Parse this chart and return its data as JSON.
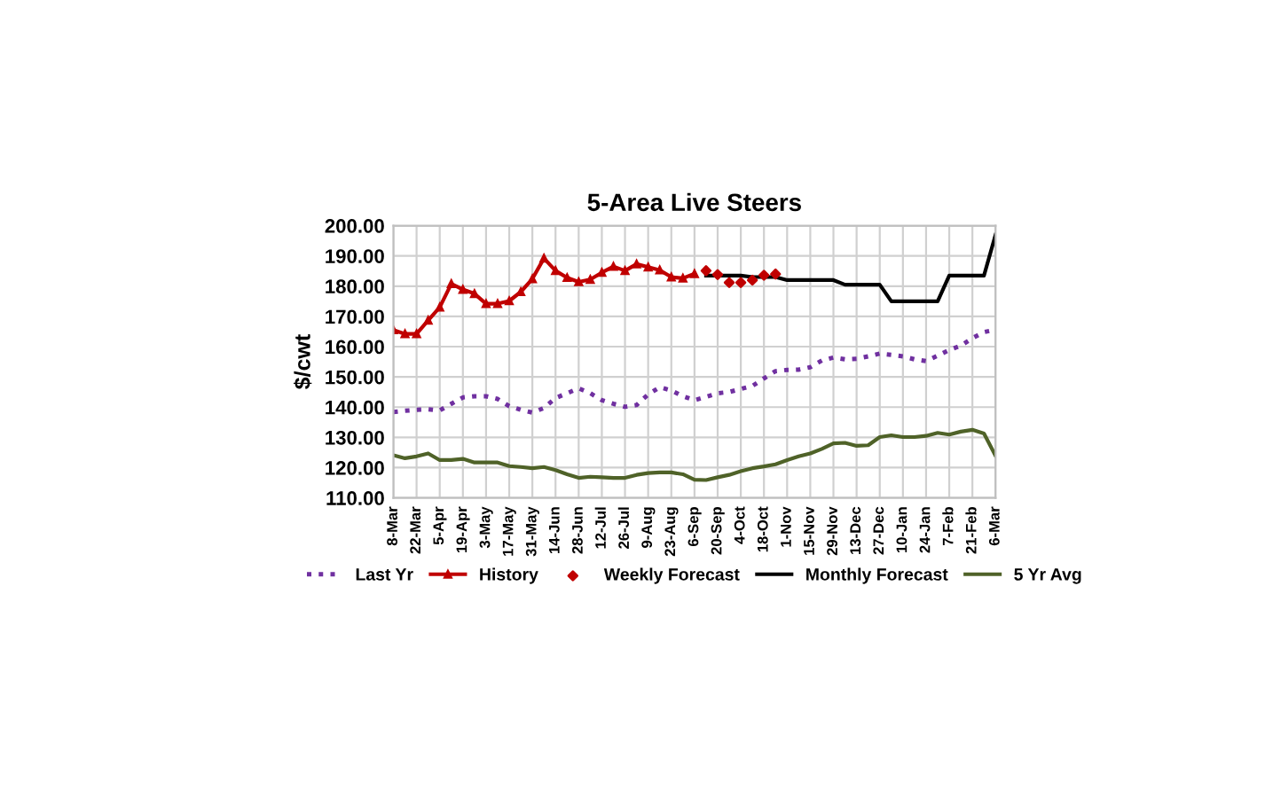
{
  "chart_data": {
    "type": "line",
    "title": "5-Area Live Steers",
    "ylabel": "$/cwt",
    "categories": [
      "8-Mar",
      null,
      "22-Mar",
      null,
      "5-Apr",
      null,
      "19-Apr",
      null,
      "3-May",
      null,
      "17-May",
      null,
      "31-May",
      null,
      "14-Jun",
      null,
      "28-Jun",
      null,
      "12-Jul",
      null,
      "26-Jul",
      null,
      "9-Aug",
      null,
      "23-Aug",
      null,
      "6-Sep",
      null,
      "20-Sep",
      null,
      "4-Oct",
      null,
      "18-Oct",
      null,
      "1-Nov",
      null,
      "15-Nov",
      null,
      "29-Nov",
      null,
      "13-Dec",
      null,
      "27-Dec",
      null,
      "10-Jan",
      null,
      "24-Jan",
      null,
      "7-Feb",
      null,
      "21-Feb",
      null,
      "6-Mar"
    ],
    "ylim": [
      110,
      200
    ],
    "yticks": [
      {
        "value": 110,
        "label": "110.00"
      },
      {
        "value": 120,
        "label": "120.00"
      },
      {
        "value": 130,
        "label": "130.00"
      },
      {
        "value": 140,
        "label": "140.00"
      },
      {
        "value": 150,
        "label": "150.00"
      },
      {
        "value": 160,
        "label": "160.00"
      },
      {
        "value": 170,
        "label": "170.00"
      },
      {
        "value": 180,
        "label": "180.00"
      },
      {
        "value": 190,
        "label": "190.00"
      },
      {
        "value": 200,
        "label": "200.00"
      }
    ],
    "grid": true,
    "legend": "bottom",
    "series": [
      {
        "name": "Last Yr",
        "color": "#7030a0",
        "line_style": "dotted",
        "marker": "none",
        "values": [
          138.4,
          138.8,
          139.1,
          139.3,
          138.9,
          141.1,
          143.2,
          143.6,
          143.6,
          142.7,
          140.3,
          139.1,
          138.2,
          139.7,
          143.0,
          144.6,
          146.2,
          144.6,
          142.3,
          141.1,
          140.1,
          140.7,
          144.2,
          146.6,
          145.5,
          143.6,
          142.3,
          143.4,
          144.6,
          145.0,
          146.0,
          147.0,
          149.5,
          151.9,
          152.3,
          152.4,
          153.2,
          155.4,
          156.4,
          155.8,
          156.0,
          156.8,
          157.7,
          157.3,
          156.8,
          155.8,
          155.2,
          157.0,
          158.9,
          160.3,
          162.8,
          164.8,
          165.6
        ]
      },
      {
        "name": "History",
        "color": "#c00000",
        "line_style": "solid",
        "marker": "triangle",
        "values": [
          165.5,
          164.2,
          164.2,
          168.7,
          173.0,
          180.8,
          178.9,
          177.5,
          174.2,
          174.2,
          175.1,
          178.1,
          182.4,
          189.2,
          185.1,
          182.8,
          181.4,
          182.2,
          184.5,
          186.5,
          185.1,
          187.3,
          186.3,
          185.3,
          183.0,
          182.6,
          184.1,
          null,
          null,
          null,
          null,
          null,
          null,
          null,
          null,
          null,
          null,
          null,
          null,
          null,
          null,
          null,
          null,
          null,
          null,
          null,
          null,
          null,
          null,
          null,
          null,
          null,
          null
        ]
      },
      {
        "name": "Weekly Forecast",
        "type": "scatter",
        "color": "#c00000",
        "marker": "diamond",
        "values": [
          null,
          null,
          null,
          null,
          null,
          null,
          null,
          null,
          null,
          null,
          null,
          null,
          null,
          null,
          null,
          null,
          null,
          null,
          null,
          null,
          null,
          null,
          null,
          null,
          null,
          null,
          null,
          185.1,
          183.8,
          181.2,
          181.2,
          182.0,
          183.6,
          184.0,
          null,
          null,
          null,
          null,
          null,
          null,
          null,
          null,
          null,
          null,
          null,
          null,
          null,
          null,
          null,
          null,
          null,
          null,
          null
        ]
      },
      {
        "name": "Monthly Forecast",
        "color": "#000000",
        "line_style": "solid",
        "marker": "none",
        "values": [
          null,
          null,
          null,
          null,
          null,
          null,
          null,
          null,
          null,
          null,
          null,
          null,
          null,
          null,
          null,
          null,
          null,
          null,
          null,
          null,
          null,
          null,
          null,
          null,
          null,
          null,
          null,
          183.5,
          183.5,
          183.5,
          183.5,
          183.0,
          183.0,
          183.0,
          182.0,
          182.0,
          182.0,
          182.0,
          182.0,
          180.5,
          180.5,
          180.5,
          180.5,
          175.0,
          175.0,
          175.0,
          175.0,
          175.0,
          183.5,
          183.5,
          183.5,
          183.5,
          197.0
        ]
      },
      {
        "name": "5 Yr Avg",
        "color": "#4f6228",
        "line_style": "solid",
        "marker": "none",
        "values": [
          124.1,
          123.1,
          123.7,
          124.7,
          122.5,
          122.5,
          122.9,
          121.7,
          121.7,
          121.7,
          120.5,
          120.2,
          119.8,
          120.2,
          119.2,
          117.8,
          116.6,
          117.0,
          116.8,
          116.6,
          116.6,
          117.6,
          118.2,
          118.4,
          118.4,
          117.8,
          116.0,
          115.9,
          116.8,
          117.6,
          118.8,
          119.8,
          120.4,
          121.1,
          122.5,
          123.7,
          124.7,
          126.2,
          128.0,
          128.2,
          127.2,
          127.4,
          130.1,
          130.7,
          130.1,
          130.1,
          130.5,
          131.5,
          130.9,
          131.9,
          132.5,
          131.3,
          123.9
        ]
      }
    ]
  }
}
